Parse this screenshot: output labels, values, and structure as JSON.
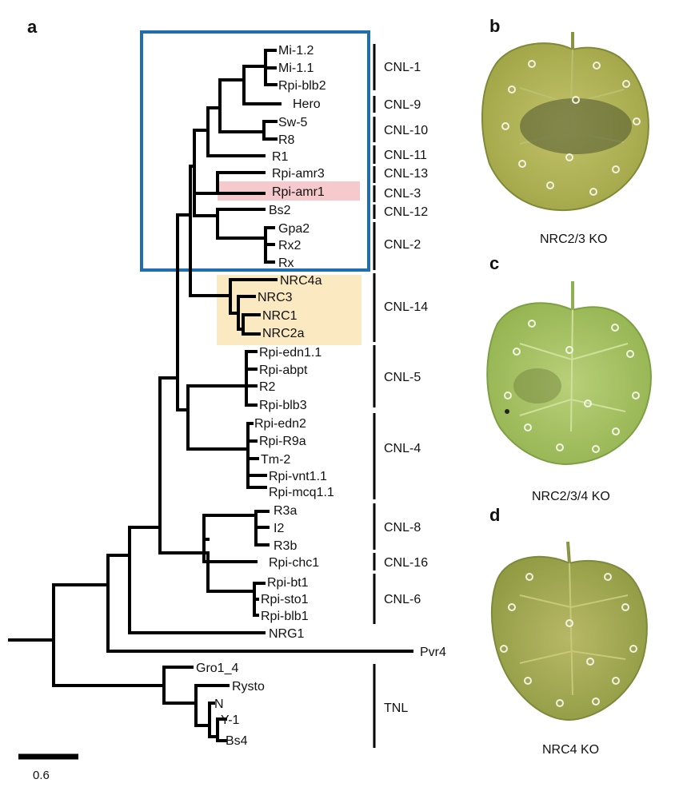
{
  "panels": {
    "a": "a",
    "b": "b",
    "c": "c",
    "d": "d"
  },
  "taxa": [
    "Mi-1.2",
    "Mi-1.1",
    "Rpi-blb2",
    "Hero",
    "Sw-5",
    "R8",
    "R1",
    "Rpi-amr3",
    "Rpi-amr1",
    "Bs2",
    "Gpa2",
    "Rx2",
    "Rx",
    "NRC4a",
    "NRC3",
    "NRC1",
    "NRC2a",
    "Rpi-edn1.1",
    "Rpi-abpt",
    "R2",
    "Rpi-blb3",
    "Rpi-edn2",
    "Rpi-R9a",
    "Tm-2",
    "Rpi-vnt1.1",
    "Rpi-mcq1.1",
    "R3a",
    "I2",
    "R3b",
    "Rpi-chc1",
    "Rpi-bt1",
    "Rpi-sto1",
    "Rpi-blb1",
    "NRG1",
    "Pvr4",
    "Gro1_4",
    "Rysto",
    "N",
    "Y-1",
    "Bs4"
  ],
  "clades": [
    "CNL-1",
    "CNL-9",
    "CNL-10",
    "CNL-11",
    "CNL-13",
    "CNL-3",
    "CNL-12",
    "CNL-2",
    "CNL-14",
    "CNL-5",
    "CNL-4",
    "CNL-8",
    "CNL-16",
    "CNL-6",
    "TNL"
  ],
  "scale_bar": {
    "label": "0.6",
    "value": 0.6
  },
  "highlights": {
    "box_color": "#1f6fb0",
    "rpi_amr1_color": "#f6c9cc",
    "nrc_color": "#fbe9c2"
  },
  "leaf_panels": [
    {
      "caption": "NRC2/3 KO"
    },
    {
      "caption": "NRC2/3/4 KO"
    },
    {
      "caption": "NRC4 KO"
    }
  ]
}
